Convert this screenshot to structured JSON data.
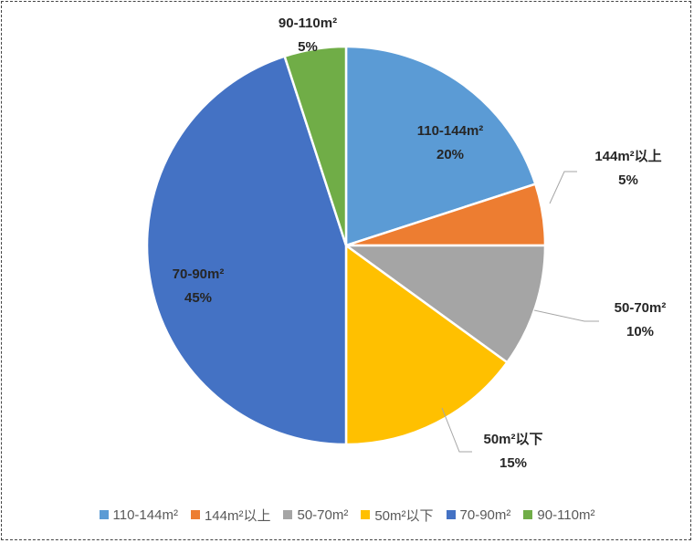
{
  "chart_data": {
    "type": "pie",
    "slices": [
      {
        "name": "110-144m²",
        "value": 20,
        "label": "20%",
        "color": "#5B9BD5"
      },
      {
        "name": "144m²以上",
        "value": 5,
        "label": "5%",
        "color": "#ED7D31"
      },
      {
        "name": "50-70m²",
        "value": 10,
        "label": "10%",
        "color": "#A5A5A5"
      },
      {
        "name": "50m²以下",
        "value": 15,
        "label": "15%",
        "color": "#FFC000"
      },
      {
        "name": "70-90m²",
        "value": 45,
        "label": "45%",
        "color": "#4472C4"
      },
      {
        "name": "90-110m²",
        "value": 5,
        "label": "5%",
        "color": "#70AD47"
      }
    ],
    "start_angle_deg": 0,
    "direction": "clockwise",
    "legend_placement": "bottom"
  }
}
